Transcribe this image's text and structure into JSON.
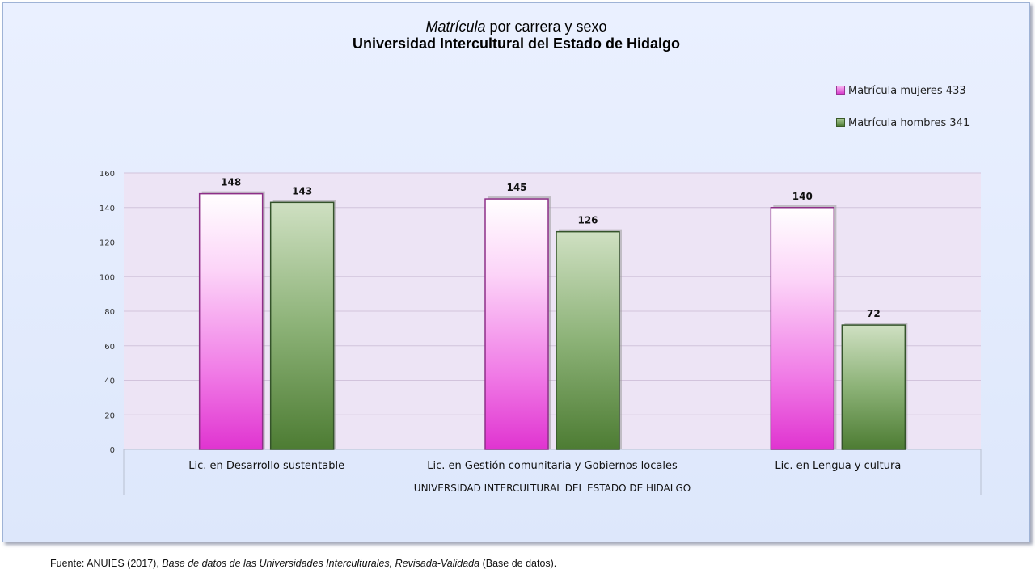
{
  "chart_data": {
    "type": "bar",
    "title_italic": "Matrícula",
    "title_rest": " por carrera y sexo",
    "subtitle": "Universidad Intercultural del Estado de Hidalgo",
    "categories": [
      "Lic. en Desarrollo sustentable",
      "Lic. en Gestión comunitaria y Gobiernos locales",
      "Lic. en Lengua y cultura"
    ],
    "group_label": "UNIVERSIDAD INTERCULTURAL DEL ESTADO DE HIDALGO",
    "series": [
      {
        "name": "Matrícula mujeres 433",
        "values": [
          148,
          145,
          140
        ],
        "color": "#e040d2"
      },
      {
        "name": "Matrícula hombres  341",
        "values": [
          143,
          126,
          72
        ],
        "color": "#5a8a3c"
      }
    ],
    "ylim": [
      0,
      160
    ],
    "yticks": [
      0,
      20,
      40,
      60,
      80,
      100,
      120,
      140,
      160
    ],
    "grid": true,
    "legend_position": "top-right",
    "plot_background": "#ede4f5"
  },
  "source": {
    "prefix": "Fuente: ANUIES (2017),  ",
    "italic": "Base de datos de las Universidades  Interculturales, Revisada-Validada",
    "suffix": "  (Base de datos)."
  }
}
